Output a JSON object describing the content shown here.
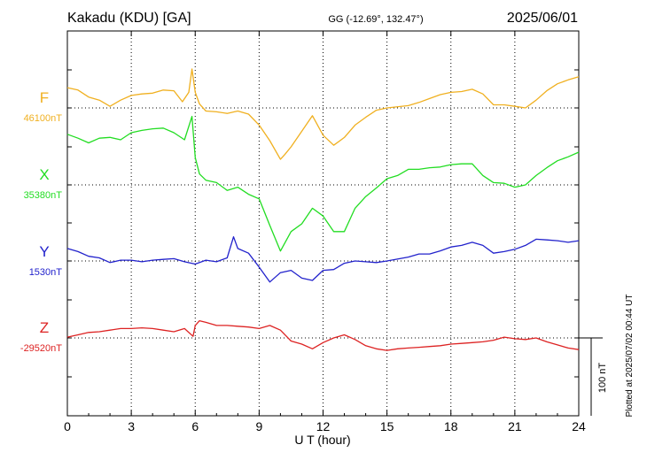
{
  "header": {
    "station": "Kakadu (KDU)  [GA]",
    "coords": "GG (-12.69°, 132.47°)",
    "date": "2025/06/01"
  },
  "footer": {
    "plotted": "Plotted at 2025/07/02 00:44 UT"
  },
  "chart_data": {
    "type": "line",
    "xlabel": "U T (hour)",
    "xlim": [
      0,
      24
    ],
    "xticks": [
      "0",
      "3",
      "6",
      "9",
      "12",
      "15",
      "18",
      "21",
      "24"
    ],
    "scale_bar_label": "100 nT",
    "scale_bar_nT": 100,
    "grid": true,
    "series": [
      {
        "name": "F",
        "baseline_label": "46100nT",
        "color": "#f0b020",
        "baseline_nT": 46100,
        "points": [
          [
            0,
            26
          ],
          [
            0.5,
            23
          ],
          [
            1,
            14
          ],
          [
            1.5,
            10
          ],
          [
            2,
            2
          ],
          [
            2.5,
            10
          ],
          [
            3,
            16
          ],
          [
            3.5,
            18
          ],
          [
            4,
            19
          ],
          [
            4.5,
            23
          ],
          [
            5,
            22
          ],
          [
            5.4,
            8
          ],
          [
            5.7,
            20
          ],
          [
            5.85,
            50
          ],
          [
            6,
            20
          ],
          [
            6.2,
            5
          ],
          [
            6.5,
            -4
          ],
          [
            7,
            -5
          ],
          [
            7.5,
            -7
          ],
          [
            8,
            -4
          ],
          [
            8.5,
            -8
          ],
          [
            9,
            -22
          ],
          [
            9.5,
            -42
          ],
          [
            10,
            -66
          ],
          [
            10.2,
            -60
          ],
          [
            10.5,
            -50
          ],
          [
            11,
            -30
          ],
          [
            11.5,
            -10
          ],
          [
            12,
            -35
          ],
          [
            12.5,
            -48
          ],
          [
            13,
            -38
          ],
          [
            13.5,
            -22
          ],
          [
            14,
            -12
          ],
          [
            14.5,
            -3
          ],
          [
            15,
            0
          ],
          [
            16,
            3
          ],
          [
            16.5,
            7
          ],
          [
            17,
            12
          ],
          [
            17.5,
            17
          ],
          [
            18,
            20
          ],
          [
            18.5,
            21
          ],
          [
            19,
            24
          ],
          [
            19.5,
            18
          ],
          [
            20,
            4
          ],
          [
            20.5,
            4
          ],
          [
            21,
            2
          ],
          [
            21.5,
            0
          ],
          [
            22,
            10
          ],
          [
            22.5,
            22
          ],
          [
            23,
            31
          ],
          [
            23.5,
            36
          ],
          [
            24,
            40
          ]
        ]
      },
      {
        "name": "X",
        "baseline_label": "35380nT",
        "color": "#22dd22",
        "baseline_nT": 35380,
        "points": [
          [
            0,
            65
          ],
          [
            0.5,
            60
          ],
          [
            1,
            54
          ],
          [
            1.5,
            60
          ],
          [
            2,
            61
          ],
          [
            2.5,
            58
          ],
          [
            3,
            67
          ],
          [
            3.5,
            70
          ],
          [
            4,
            72
          ],
          [
            4.5,
            73
          ],
          [
            5,
            67
          ],
          [
            5.5,
            58
          ],
          [
            5.85,
            88
          ],
          [
            6,
            35
          ],
          [
            6.2,
            14
          ],
          [
            6.5,
            6
          ],
          [
            7,
            3
          ],
          [
            7.5,
            -7
          ],
          [
            8,
            -3
          ],
          [
            8.5,
            -12
          ],
          [
            9,
            -18
          ],
          [
            9.5,
            -52
          ],
          [
            10,
            -85
          ],
          [
            10.5,
            -60
          ],
          [
            11,
            -50
          ],
          [
            11.5,
            -30
          ],
          [
            12,
            -40
          ],
          [
            12.5,
            -60
          ],
          [
            13,
            -60
          ],
          [
            13.5,
            -30
          ],
          [
            14,
            -15
          ],
          [
            14.5,
            -4
          ],
          [
            15,
            8
          ],
          [
            15.5,
            12
          ],
          [
            16,
            20
          ],
          [
            16.5,
            20
          ],
          [
            17,
            22
          ],
          [
            17.5,
            23
          ],
          [
            18,
            26
          ],
          [
            18.5,
            27
          ],
          [
            19,
            27
          ],
          [
            19.5,
            12
          ],
          [
            20,
            3
          ],
          [
            20.5,
            2
          ],
          [
            21,
            -3
          ],
          [
            21.5,
            0
          ],
          [
            22,
            12
          ],
          [
            22.5,
            22
          ],
          [
            23,
            31
          ],
          [
            23.5,
            36
          ],
          [
            24,
            42
          ]
        ]
      },
      {
        "name": "Y",
        "baseline_label": "1530nT",
        "color": "#2222cc",
        "baseline_nT": 1530,
        "points": [
          [
            0,
            16
          ],
          [
            0.5,
            12
          ],
          [
            1,
            6
          ],
          [
            1.5,
            4
          ],
          [
            2,
            -2
          ],
          [
            2.5,
            1
          ],
          [
            3,
            1
          ],
          [
            3.5,
            -1
          ],
          [
            4,
            1
          ],
          [
            4.5,
            2
          ],
          [
            5,
            3
          ],
          [
            5.5,
            -1
          ],
          [
            6,
            -4
          ],
          [
            6.5,
            1
          ],
          [
            7,
            -1
          ],
          [
            7.5,
            4
          ],
          [
            7.8,
            31
          ],
          [
            8,
            16
          ],
          [
            8.5,
            10
          ],
          [
            9,
            -8
          ],
          [
            9.5,
            -27
          ],
          [
            10,
            -15
          ],
          [
            10.5,
            -12
          ],
          [
            11,
            -22
          ],
          [
            11.5,
            -25
          ],
          [
            12,
            -12
          ],
          [
            12.5,
            -11
          ],
          [
            13,
            -3
          ],
          [
            13.5,
            0
          ],
          [
            14,
            -1
          ],
          [
            14.5,
            -2
          ],
          [
            15,
            0
          ],
          [
            16,
            5
          ],
          [
            16.5,
            9
          ],
          [
            17,
            9
          ],
          [
            17.5,
            13
          ],
          [
            18,
            18
          ],
          [
            18.5,
            20
          ],
          [
            19,
            24
          ],
          [
            19.5,
            20
          ],
          [
            20,
            10
          ],
          [
            20.5,
            12
          ],
          [
            21,
            15
          ],
          [
            21.5,
            20
          ],
          [
            22,
            28
          ],
          [
            22.5,
            27
          ],
          [
            23,
            26
          ],
          [
            23.5,
            24
          ],
          [
            24,
            26
          ]
        ]
      },
      {
        "name": "Z",
        "baseline_label": "-29520nT",
        "color": "#dd2222",
        "baseline_nT": -29520,
        "points": [
          [
            0,
            1
          ],
          [
            0.5,
            4
          ],
          [
            1,
            7
          ],
          [
            1.5,
            8
          ],
          [
            2,
            10
          ],
          [
            2.5,
            12
          ],
          [
            3,
            12
          ],
          [
            3.5,
            13
          ],
          [
            4,
            12
          ],
          [
            4.5,
            10
          ],
          [
            5,
            8
          ],
          [
            5.5,
            12
          ],
          [
            5.9,
            2
          ],
          [
            6,
            16
          ],
          [
            6.2,
            22
          ],
          [
            6.5,
            20
          ],
          [
            7,
            16
          ],
          [
            7.5,
            16
          ],
          [
            8,
            15
          ],
          [
            8.5,
            14
          ],
          [
            9,
            12
          ],
          [
            9.5,
            16
          ],
          [
            10,
            10
          ],
          [
            10.5,
            -4
          ],
          [
            11,
            -8
          ],
          [
            11.5,
            -14
          ],
          [
            12,
            -6
          ],
          [
            12.5,
            0
          ],
          [
            13,
            4
          ],
          [
            13.5,
            -2
          ],
          [
            14,
            -10
          ],
          [
            14.5,
            -14
          ],
          [
            15,
            -16
          ],
          [
            15.5,
            -14
          ],
          [
            16,
            -13
          ],
          [
            16.5,
            -12
          ],
          [
            17,
            -11
          ],
          [
            17.5,
            -10
          ],
          [
            18,
            -8
          ],
          [
            18.5,
            -7
          ],
          [
            19,
            -6
          ],
          [
            19.5,
            -5
          ],
          [
            20,
            -3
          ],
          [
            20.5,
            1
          ],
          [
            21,
            -1
          ],
          [
            21.5,
            -2
          ],
          [
            22,
            0
          ],
          [
            22.5,
            -5
          ],
          [
            23,
            -9
          ],
          [
            23.5,
            -13
          ],
          [
            24,
            -15
          ]
        ]
      }
    ]
  }
}
